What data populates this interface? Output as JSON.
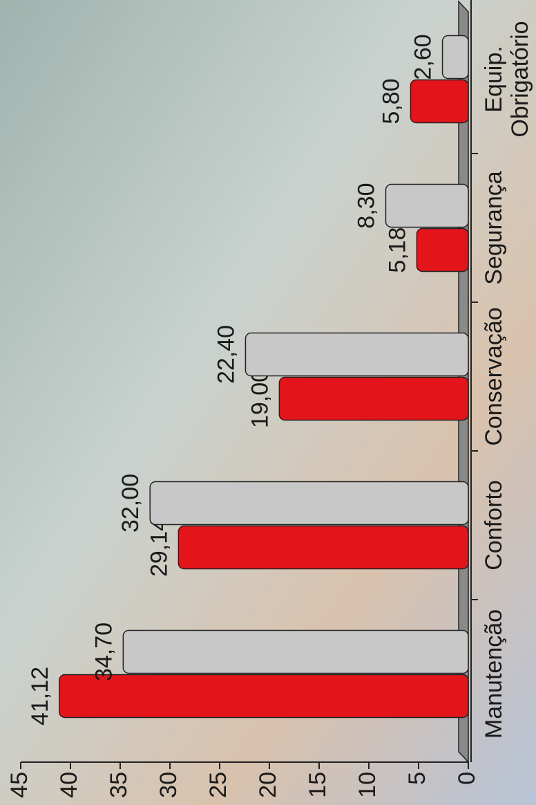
{
  "chart_data": {
    "type": "bar",
    "categories": [
      "Manutenção",
      "Conforto",
      "Conservação",
      "Segurança",
      "Equip. Obrigatório"
    ],
    "series": [
      {
        "color": "#e3151a",
        "values": [
          41.12,
          29.14,
          19.0,
          5.18,
          5.8
        ],
        "value_labels": [
          "41,12",
          "29,14",
          "19,00",
          "5,18",
          "5,80"
        ]
      },
      {
        "color": "#c8c8c8",
        "values": [
          34.7,
          32.0,
          22.4,
          8.3,
          2.6
        ],
        "value_labels": [
          "34,70",
          "32,00",
          "22,40",
          "8,30",
          "2,60"
        ]
      }
    ],
    "ylim": [
      0,
      45
    ],
    "yticks": [
      0,
      5,
      10,
      15,
      20,
      25,
      30,
      35,
      40,
      45
    ],
    "grid": false
  }
}
